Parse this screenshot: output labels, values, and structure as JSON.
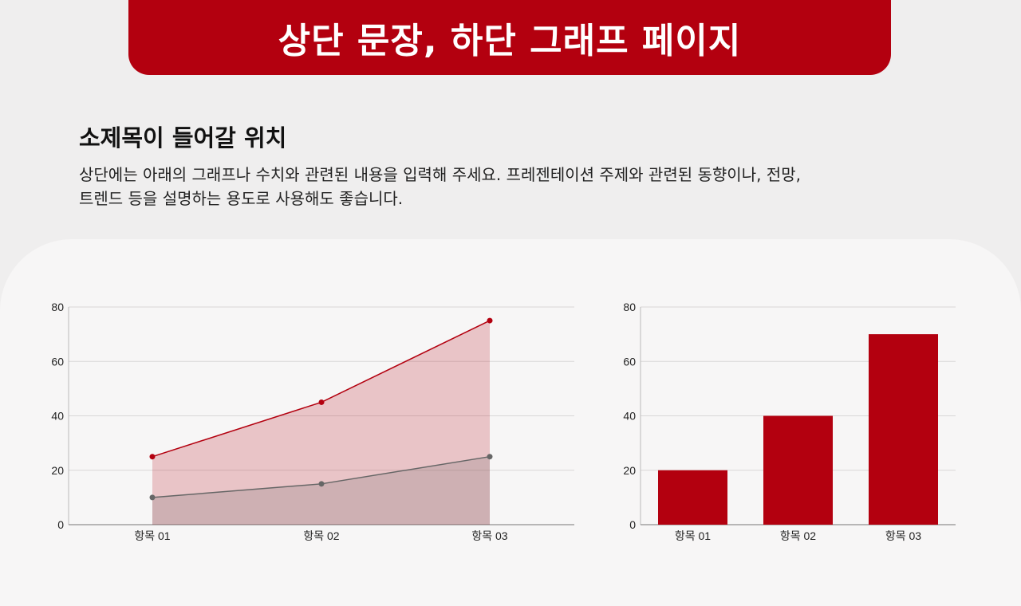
{
  "header": {
    "title": "상단 문장, 하단 그래프 페이지"
  },
  "content": {
    "subtitle": "소제목이 들어갈 위치",
    "body_line1": "상단에는 아래의 그래프나 수치와 관련된 내용을 입력해 주세요. 프레젠테이션 주제와 관련된 동향이나, 전망,",
    "body_line2": "트렌드 등을 설명하는 용도로 사용해도 좋습니다."
  },
  "colors": {
    "accent": "#b3000f",
    "secondary": "#666666"
  },
  "chart_data": [
    {
      "type": "area",
      "categories": [
        "항목 01",
        "항목 02",
        "항목 03"
      ],
      "series": [
        {
          "values": [
            25,
            45,
            75
          ],
          "color": "#b3000f"
        },
        {
          "values": [
            10,
            15,
            25
          ],
          "color": "#666666"
        }
      ],
      "ylim": [
        0,
        80
      ],
      "yticks": [
        0,
        20,
        40,
        60,
        80
      ],
      "grid": true
    },
    {
      "type": "bar",
      "categories": [
        "항목 01",
        "항목 02",
        "항목 03"
      ],
      "values": [
        20,
        40,
        70
      ],
      "color": "#b3000f",
      "ylim": [
        0,
        80
      ],
      "yticks": [
        0,
        20,
        40,
        60,
        80
      ],
      "grid": true
    }
  ]
}
